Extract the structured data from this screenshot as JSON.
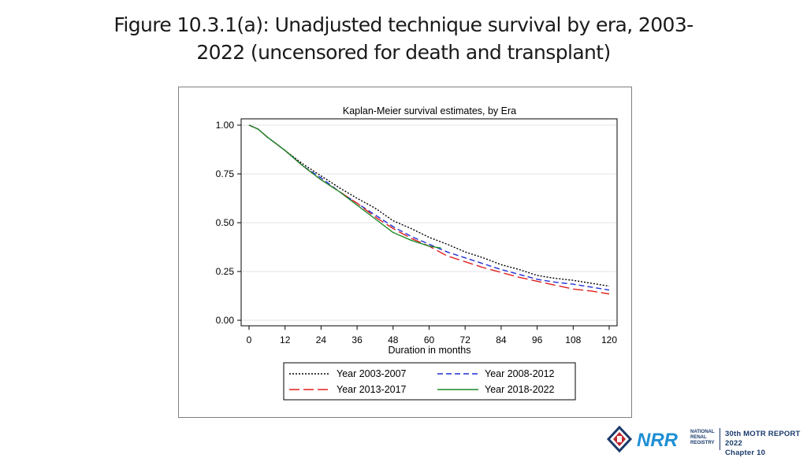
{
  "slide": {
    "title_line1": "Figure 10.3.1(a): Unadjusted technique survival by era, 2003-",
    "title_line2": "2022 (uncensored for death and transplant)"
  },
  "footer": {
    "registry_lines": [
      "NATIONAL",
      "RENAL",
      "REGISTRY"
    ],
    "report_line1": "30th MOTR REPORT 2022",
    "report_line2": "Chapter 10",
    "brand_color": "#1a3a6b",
    "accent_color": "#c0282d"
  },
  "chart_data": {
    "type": "line",
    "title": "Kaplan-Meier survival estimates, by Era",
    "xlabel": "Duration in months",
    "ylabel": "",
    "xlim": [
      0,
      120
    ],
    "ylim": [
      0,
      1
    ],
    "xticks": [
      "0",
      "12",
      "24",
      "36",
      "48",
      "60",
      "72",
      "84",
      "96",
      "108",
      "120"
    ],
    "yticks": [
      "0.00",
      "0.25",
      "0.50",
      "0.75",
      "1.00"
    ],
    "grid": "horizontal",
    "legend_position": "bottom",
    "series": [
      {
        "name": "Year 2003-2007",
        "color": "#000000",
        "dash": "dotted",
        "x": [
          0,
          3,
          6,
          12,
          18,
          24,
          30,
          36,
          42,
          48,
          54,
          60,
          66,
          72,
          78,
          84,
          90,
          96,
          102,
          108,
          114,
          120
        ],
        "y": [
          1.0,
          0.98,
          0.94,
          0.87,
          0.8,
          0.74,
          0.68,
          0.625,
          0.575,
          0.51,
          0.47,
          0.425,
          0.39,
          0.35,
          0.32,
          0.285,
          0.26,
          0.23,
          0.215,
          0.205,
          0.19,
          0.175
        ]
      },
      {
        "name": "Year 2008-2012",
        "color": "#1f2fd6",
        "dash": "dashed",
        "x": [
          0,
          3,
          6,
          12,
          18,
          24,
          30,
          36,
          42,
          48,
          54,
          60,
          66,
          72,
          78,
          84,
          90,
          96,
          102,
          108,
          114,
          120
        ],
        "y": [
          1.0,
          0.98,
          0.94,
          0.87,
          0.79,
          0.73,
          0.66,
          0.6,
          0.54,
          0.48,
          0.43,
          0.39,
          0.35,
          0.32,
          0.29,
          0.26,
          0.235,
          0.21,
          0.195,
          0.185,
          0.17,
          0.155
        ]
      },
      {
        "name": "Year 2013-2017",
        "color": "#e0201f",
        "dash": "longdash",
        "x": [
          0,
          3,
          6,
          12,
          18,
          24,
          30,
          36,
          42,
          48,
          54,
          60,
          66,
          72,
          78,
          84,
          90,
          96,
          102,
          108,
          114,
          118,
          120
        ],
        "y": [
          1.0,
          0.98,
          0.94,
          0.87,
          0.79,
          0.72,
          0.66,
          0.6,
          0.53,
          0.47,
          0.42,
          0.38,
          0.33,
          0.3,
          0.27,
          0.245,
          0.22,
          0.2,
          0.18,
          0.16,
          0.15,
          0.14,
          0.135
        ]
      },
      {
        "name": "Year 2018-2022",
        "color": "#1e8a2a",
        "dash": "solid",
        "x": [
          0,
          3,
          6,
          12,
          18,
          24,
          30,
          36,
          42,
          48,
          54,
          60,
          64
        ],
        "y": [
          1.0,
          0.98,
          0.94,
          0.87,
          0.79,
          0.72,
          0.66,
          0.59,
          0.52,
          0.45,
          0.41,
          0.38,
          0.37
        ]
      }
    ]
  }
}
